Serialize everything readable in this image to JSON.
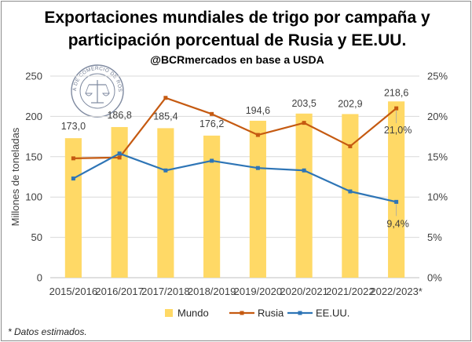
{
  "chart_data": {
    "type": "bar",
    "title": "Exportaciones mundiales de trigo por campaña y",
    "title_line2": "participación porcentual de Rusia y EE.UU.",
    "subtitle": "@BCRmercados en base a USDA",
    "ylabel": "Millones de toneladas",
    "ylim": [
      0,
      250
    ],
    "y_ticks": [
      "0",
      "50",
      "100",
      "150",
      "200",
      "250"
    ],
    "y2lim": [
      0,
      25
    ],
    "y2_ticks": [
      "0%",
      "5%",
      "10%",
      "15%",
      "20%",
      "25%"
    ],
    "categories": [
      "2015/2016",
      "2016/2017",
      "2017/2018",
      "2018/2019",
      "2019/2020",
      "2020/2021",
      "2021/2022",
      "2022/2023*"
    ],
    "series": [
      {
        "name": "Mundo",
        "type": "bar",
        "axis": "left",
        "color": "#FFD966",
        "values": [
          173.0,
          186.8,
          185.4,
          176.2,
          194.6,
          203.5,
          202.9,
          218.6
        ],
        "labels": [
          "173,0",
          "186,8",
          "185,4",
          "176,2",
          "194,6",
          "203,5",
          "202,9",
          "218,6"
        ]
      },
      {
        "name": "Rusia",
        "type": "line",
        "axis": "right",
        "color": "#C55A11",
        "values": [
          14.8,
          14.9,
          22.3,
          20.3,
          17.7,
          19.2,
          16.3,
          21.0
        ],
        "end_label": "21,0%"
      },
      {
        "name": "EE.UU.",
        "type": "line",
        "axis": "right",
        "color": "#2E75B6",
        "values": [
          12.3,
          15.4,
          13.3,
          14.5,
          13.6,
          13.3,
          10.7,
          9.4
        ],
        "end_label": "9,4%"
      }
    ],
    "legend_position": "bottom",
    "grid": true
  },
  "logo": {
    "name": "bolsa-de-comercio-de-rosario-seal",
    "text": "BOLSA DE COMERCIO DE ROSARIO"
  },
  "footnote": "* Datos estimados."
}
